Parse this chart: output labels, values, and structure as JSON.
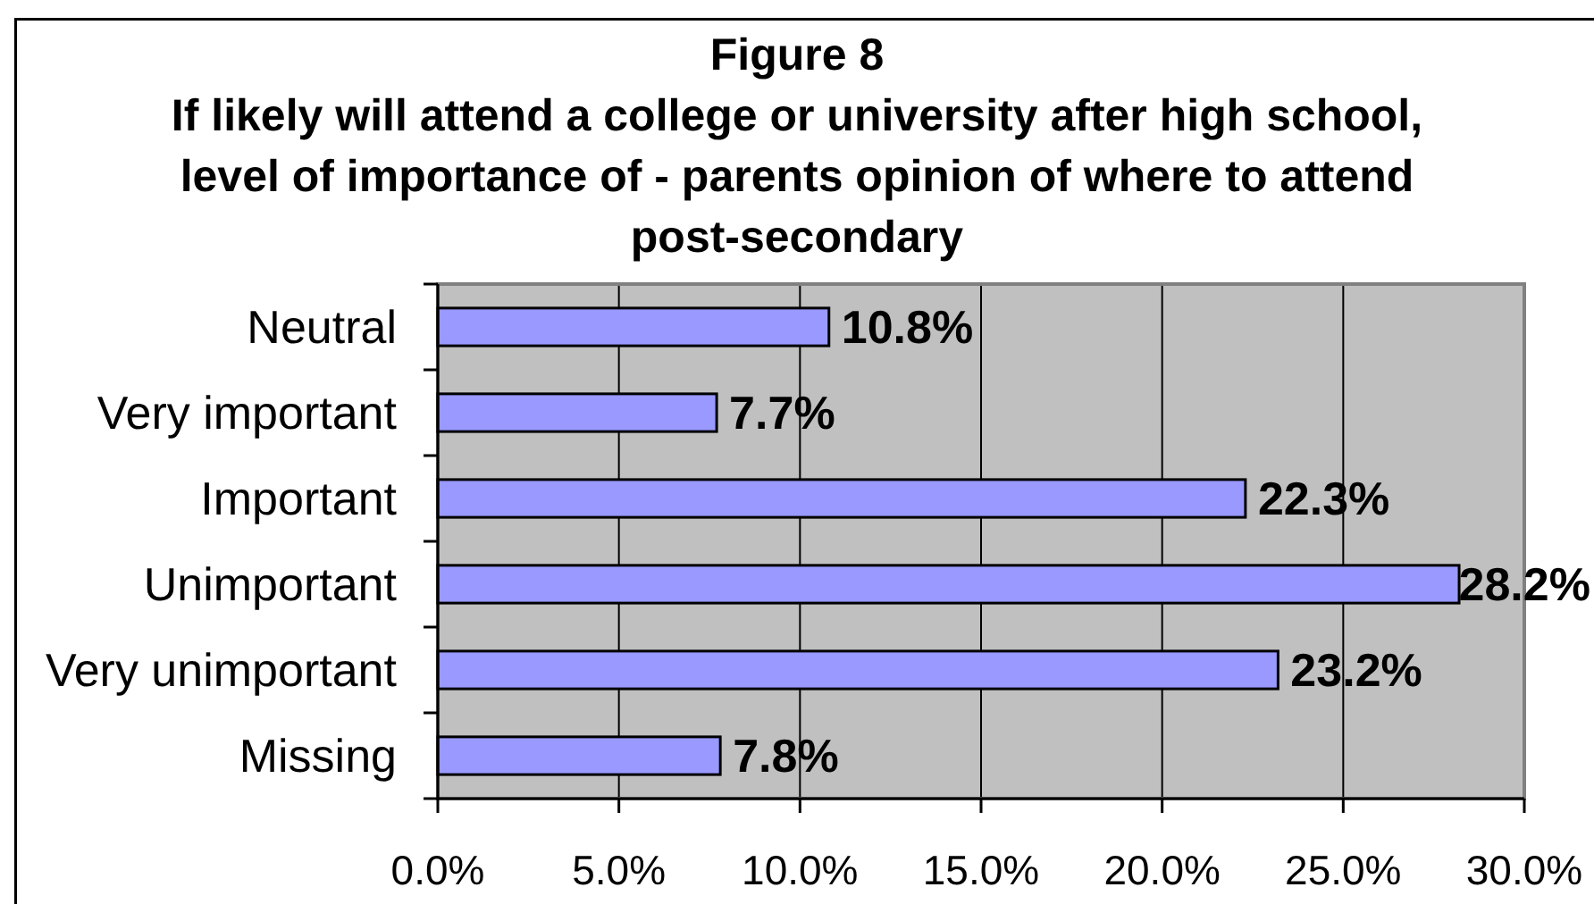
{
  "chart_data": {
    "type": "bar",
    "orientation": "horizontal",
    "title": "Figure 8",
    "subtitle": "If likely will attend a college or university after high school, level of importance of - parents opinion of where to attend post-secondary",
    "categories": [
      "Neutral",
      "Very important",
      "Important",
      "Unimportant",
      "Very unimportant",
      "Missing"
    ],
    "values": [
      10.8,
      7.7,
      22.3,
      28.2,
      23.2,
      7.8
    ],
    "value_labels": [
      "10.8%",
      "7.7%",
      "22.3%",
      "28.2%",
      "23.2%",
      "7.8%"
    ],
    "color": "#9999ff",
    "xlim": [
      0,
      30
    ],
    "xticks": [
      {
        "value": 0,
        "label": "0.0%"
      },
      {
        "value": 5,
        "label": "5.0%"
      },
      {
        "value": 10,
        "label": "10.0%"
      },
      {
        "value": 15,
        "label": "15.0%"
      },
      {
        "value": 20,
        "label": "20.0%"
      },
      {
        "value": 25,
        "label": "25.0%"
      },
      {
        "value": 30,
        "label": "30.0%"
      }
    ],
    "grid": "x"
  }
}
